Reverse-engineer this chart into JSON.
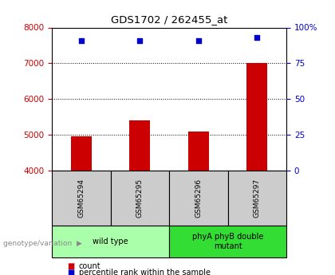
{
  "title": "GDS1702 / 262455_at",
  "samples": [
    "GSM65294",
    "GSM65295",
    "GSM65296",
    "GSM65297"
  ],
  "counts": [
    4950,
    5400,
    5100,
    7000
  ],
  "percentiles": [
    91,
    91,
    91,
    93
  ],
  "ylim_left": [
    4000,
    8000
  ],
  "ylim_right": [
    0,
    100
  ],
  "yticks_left": [
    4000,
    5000,
    6000,
    7000,
    8000
  ],
  "yticks_right": [
    0,
    25,
    50,
    75,
    100
  ],
  "yticklabels_right": [
    "0",
    "25",
    "50",
    "75",
    "100%"
  ],
  "bar_color": "#cc0000",
  "dot_color": "#0000cc",
  "groups": [
    {
      "label": "wild type",
      "indices": [
        0,
        1
      ]
    },
    {
      "label": "phyA phyB double\nmutant",
      "indices": [
        2,
        3
      ]
    }
  ],
  "group_bg_colors": [
    "#aaffaa",
    "#33dd33"
  ],
  "sample_bg_color": "#cccccc",
  "legend_count_label": "count",
  "legend_pct_label": "percentile rank within the sample",
  "genotype_label": "genotype/variation",
  "title_color": "#000000",
  "left_axis_color": "#cc0000",
  "right_axis_color": "#0000cc",
  "bar_width": 0.35
}
